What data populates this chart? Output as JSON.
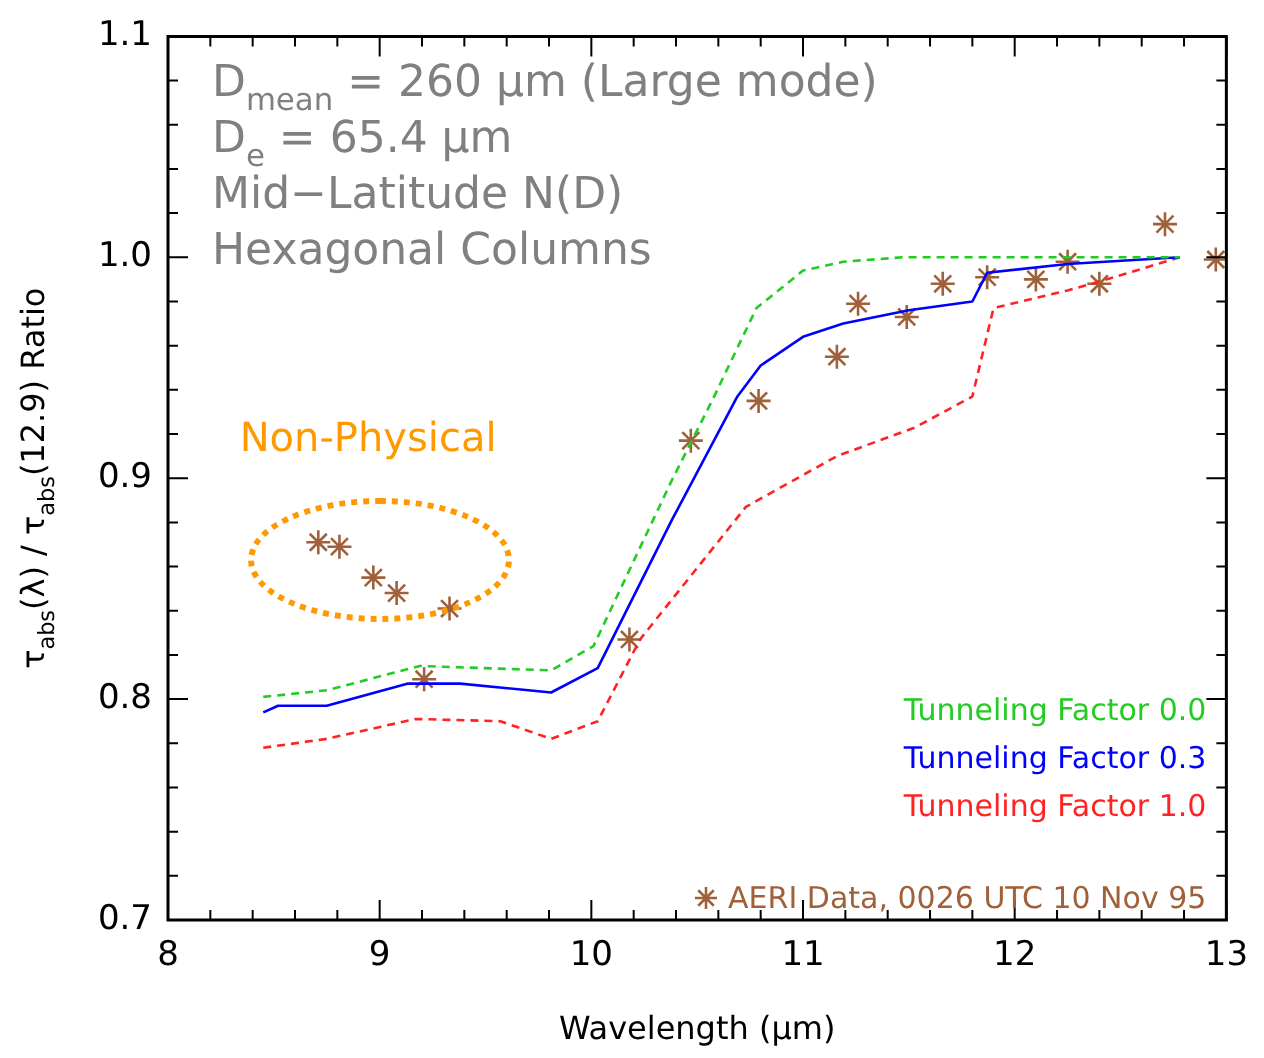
{
  "chart_data": {
    "type": "line",
    "xlabel": "Wavelength (μm)",
    "ylabel": "τ$_{abs}$(λ) / τ$_{abs}$(12.9) Ratio",
    "xlim": [
      8,
      13
    ],
    "ylim": [
      0.7,
      1.1
    ],
    "xticks": [
      8,
      {
        "value": 8.2,
        "label": null
      },
      {
        "value": 8.4,
        "label": null
      },
      {
        "value": 8.6,
        "label": null
      },
      {
        "value": 8.8,
        "label": null
      },
      9,
      {
        "value": 9.2,
        "label": null
      },
      {
        "value": 9.4,
        "label": null
      },
      {
        "value": 9.6,
        "label": null
      },
      {
        "value": 9.8,
        "label": null
      },
      10,
      {
        "value": 10.2,
        "label": null
      },
      {
        "value": 10.4,
        "label": null
      },
      {
        "value": 10.6,
        "label": null
      },
      {
        "value": 10.8,
        "label": null
      },
      11,
      {
        "value": 11.2,
        "label": null
      },
      {
        "value": 11.4,
        "label": null
      },
      {
        "value": 11.6,
        "label": null
      },
      {
        "value": 11.8,
        "label": null
      },
      12,
      {
        "value": 12.2,
        "label": null
      },
      {
        "value": 12.4,
        "label": null
      },
      {
        "value": 12.6,
        "label": null
      },
      {
        "value": 12.8,
        "label": null
      },
      13
    ],
    "yticks": [
      0.7,
      {
        "value": 0.72,
        "label": null
      },
      {
        "value": 0.74,
        "label": null
      },
      {
        "value": 0.76,
        "label": null
      },
      {
        "value": 0.78,
        "label": null
      },
      {
        "value": 0.8,
        "label": "0.8"
      },
      {
        "value": 0.82,
        "label": null
      },
      {
        "value": 0.84,
        "label": null
      },
      {
        "value": 0.86,
        "label": null
      },
      {
        "value": 0.88,
        "label": null
      },
      0.9,
      {
        "value": 0.92,
        "label": null
      },
      {
        "value": 0.94,
        "label": null
      },
      {
        "value": 0.96,
        "label": null
      },
      {
        "value": 0.98,
        "label": null
      },
      {
        "value": 1,
        "label": "1.0"
      },
      {
        "value": 1.02,
        "label": null
      },
      {
        "value": 1.04,
        "label": null
      },
      {
        "value": 1.06,
        "label": null
      },
      {
        "value": 1.08,
        "label": null
      },
      1.1
    ],
    "legend": "bottom right",
    "grid": false,
    "annotations": [
      "D$_{mean}$ = 260 μm (Large mode)",
      "D$_{e}$ = 65.4 μm",
      "Mid−Latitude N(D)",
      "Hexagonal Columns",
      {
        "text": "Non-Physical",
        "x": 9.0,
        "y": 0.86
      }
    ],
    "series": [
      {
        "name": "Tunneling Factor 0.0",
        "color": "#22cc22",
        "line_style": "dashed",
        "marker": "none",
        "x": [
          8.45,
          8.75,
          9.19,
          9.81,
          10.01,
          10.38,
          10.57,
          10.78,
          11.0,
          11.19,
          11.47,
          12.78
        ],
        "values": [
          0.801,
          0.804,
          0.815,
          0.813,
          0.824,
          0.899,
          0.935,
          0.977,
          0.994,
          0.998,
          1.0,
          1.0
        ]
      },
      {
        "name": "Tunneling Factor 0.3",
        "color": "#0000ff",
        "line_style": "solid",
        "marker": "none",
        "x": [
          8.45,
          8.52,
          8.75,
          9.13,
          9.38,
          9.81,
          10.03,
          10.38,
          10.69,
          10.8,
          11.0,
          11.19,
          11.5,
          11.8,
          11.87,
          12.25,
          12.78
        ],
        "values": [
          0.794,
          0.797,
          0.797,
          0.807,
          0.807,
          0.803,
          0.814,
          0.881,
          0.937,
          0.951,
          0.964,
          0.97,
          0.976,
          0.98,
          0.993,
          0.997,
          1.0
        ]
      },
      {
        "name": "Tunneling Factor 1.0",
        "color": "#ff2222",
        "line_style": "dashed",
        "marker": "none",
        "x": [
          8.45,
          8.75,
          9.17,
          9.57,
          9.81,
          10.03,
          10.23,
          10.38,
          10.73,
          11.16,
          11.53,
          11.8,
          11.84,
          11.9,
          12.25,
          12.4,
          12.78
        ],
        "values": [
          0.778,
          0.782,
          0.791,
          0.79,
          0.782,
          0.79,
          0.827,
          0.845,
          0.887,
          0.91,
          0.923,
          0.937,
          0.953,
          0.977,
          0.985,
          0.989,
          1.0
        ]
      },
      {
        "name": "AERI Data, 0026 UTC 10 Nov 95",
        "type": "scatter",
        "color": "#a0603a",
        "marker": "cross",
        "x": [
          8.71,
          8.81,
          8.97,
          9.08,
          9.33,
          9.21,
          10.18,
          10.47,
          10.79,
          11.16,
          11.26,
          11.49,
          11.66,
          11.87,
          12.1,
          12.25,
          12.4,
          12.71,
          12.95
        ],
        "values": [
          0.871,
          0.869,
          0.855,
          0.848,
          0.841,
          0.809,
          0.827,
          0.917,
          0.935,
          0.955,
          0.979,
          0.973,
          0.988,
          0.991,
          0.99,
          0.998,
          0.988,
          1.015,
          0.999
        ]
      }
    ]
  }
}
